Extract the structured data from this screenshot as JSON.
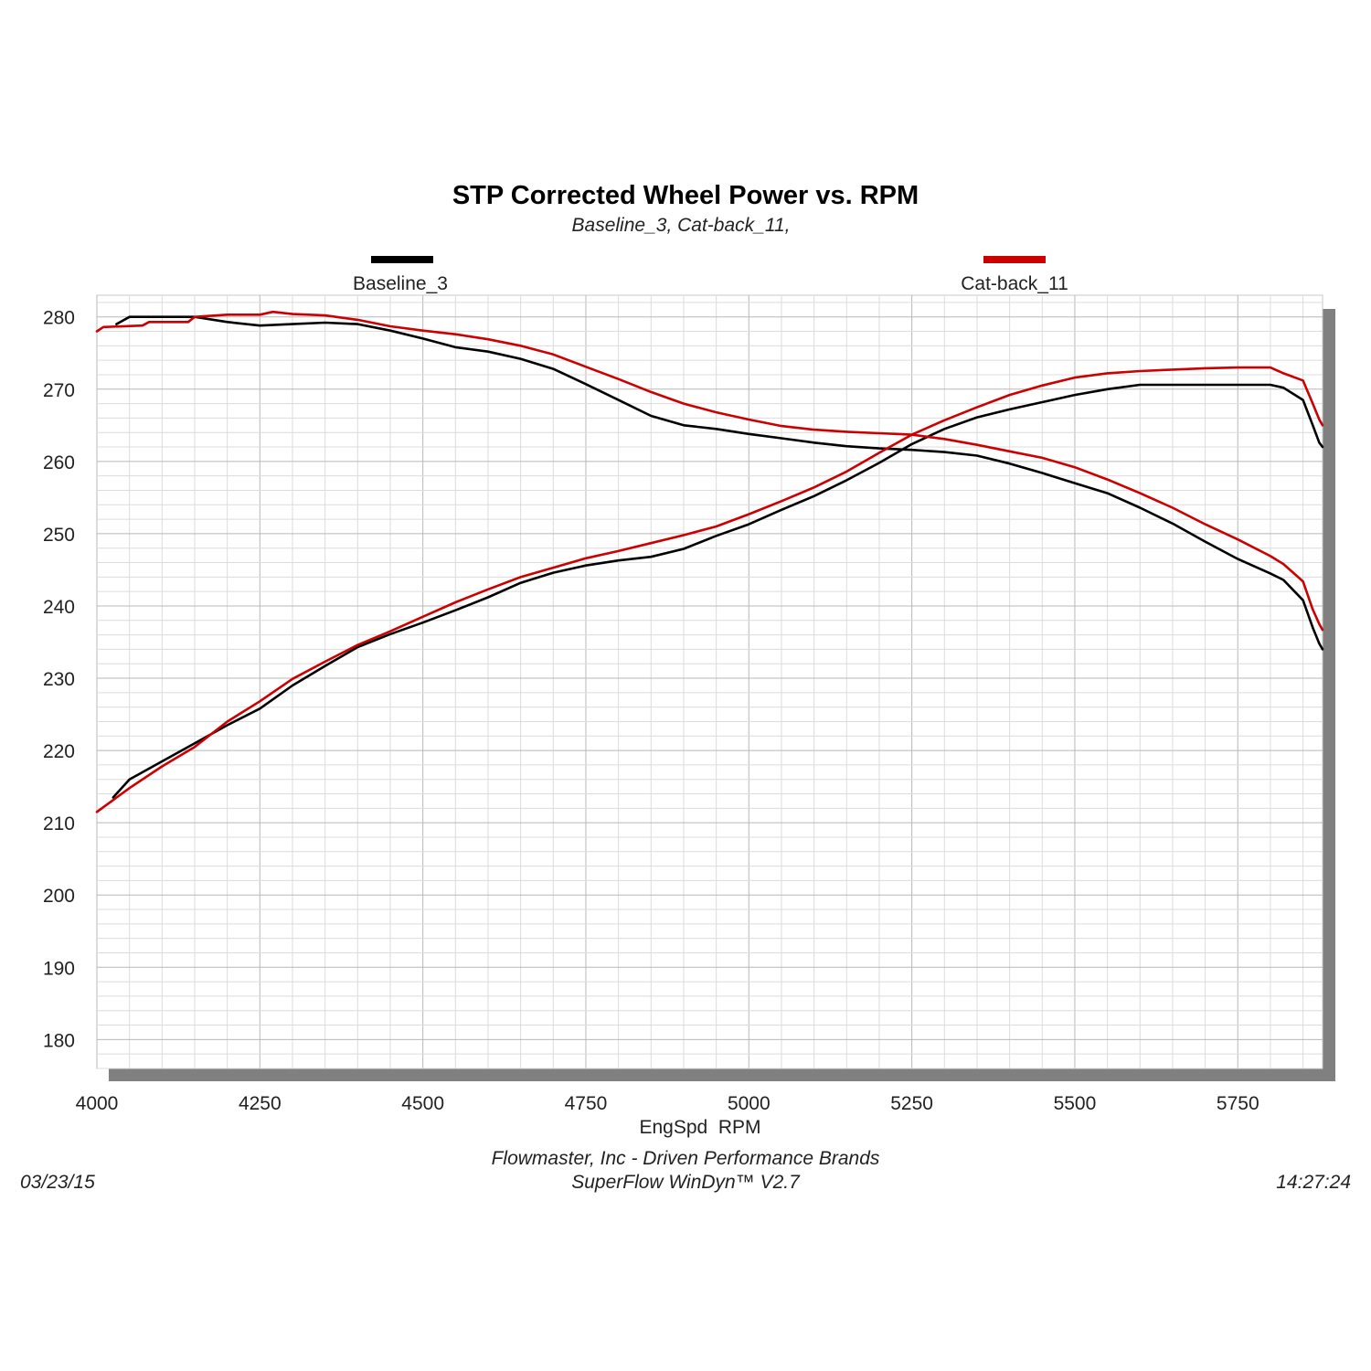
{
  "chart_data": {
    "type": "line",
    "title": "STP Corrected Wheel Power vs. RPM",
    "subtitle": "Baseline_3, Cat-back_11,",
    "xlabel": "EngSpd  RPM",
    "ylabel": "",
    "xlim": [
      4000,
      5880
    ],
    "ylim": [
      176,
      283
    ],
    "x_ticks": [
      4000,
      4250,
      4500,
      4750,
      5000,
      5250,
      5500,
      5750
    ],
    "y_ticks": [
      180,
      190,
      200,
      210,
      220,
      230,
      240,
      250,
      260,
      270,
      280
    ],
    "grid": true,
    "legend": [
      {
        "name": "Baseline_3",
        "color": "#000000"
      },
      {
        "name": "Cat-back_11",
        "color": "#cc0000"
      }
    ],
    "series": [
      {
        "name": "Baseline_3",
        "curve": "torque",
        "color": "#000000",
        "points": [
          [
            4030,
            279
          ],
          [
            4050,
            280
          ],
          [
            4100,
            280
          ],
          [
            4150,
            280
          ],
          [
            4200,
            279.3
          ],
          [
            4250,
            278.8
          ],
          [
            4300,
            279
          ],
          [
            4350,
            279.2
          ],
          [
            4400,
            279
          ],
          [
            4450,
            278.1
          ],
          [
            4500,
            277
          ],
          [
            4550,
            275.8
          ],
          [
            4600,
            275.2
          ],
          [
            4650,
            274.2
          ],
          [
            4700,
            272.8
          ],
          [
            4750,
            270.7
          ],
          [
            4800,
            268.5
          ],
          [
            4850,
            266.3
          ],
          [
            4900,
            265
          ],
          [
            4950,
            264.5
          ],
          [
            5000,
            263.8
          ],
          [
            5050,
            263.2
          ],
          [
            5100,
            262.6
          ],
          [
            5150,
            262.1
          ],
          [
            5200,
            261.8
          ],
          [
            5250,
            261.6
          ],
          [
            5300,
            261.3
          ],
          [
            5350,
            260.8
          ],
          [
            5400,
            259.7
          ],
          [
            5450,
            258.4
          ],
          [
            5500,
            257
          ],
          [
            5550,
            255.6
          ],
          [
            5600,
            253.6
          ],
          [
            5650,
            251.4
          ],
          [
            5700,
            248.9
          ],
          [
            5750,
            246.5
          ],
          [
            5800,
            244.5
          ],
          [
            5820,
            243.6
          ],
          [
            5850,
            240.8
          ],
          [
            5865,
            237
          ],
          [
            5875,
            234.8
          ],
          [
            5880,
            234
          ]
        ]
      },
      {
        "name": "Baseline_3",
        "curve": "power",
        "color": "#000000",
        "points": [
          [
            4025,
            213.5
          ],
          [
            4050,
            216
          ],
          [
            4100,
            218.5
          ],
          [
            4150,
            221
          ],
          [
            4200,
            223.5
          ],
          [
            4250,
            225.8
          ],
          [
            4300,
            229
          ],
          [
            4350,
            231.7
          ],
          [
            4400,
            234.3
          ],
          [
            4450,
            236.1
          ],
          [
            4500,
            237.7
          ],
          [
            4550,
            239.4
          ],
          [
            4600,
            241.2
          ],
          [
            4650,
            243.2
          ],
          [
            4700,
            244.6
          ],
          [
            4750,
            245.6
          ],
          [
            4800,
            246.3
          ],
          [
            4850,
            246.8
          ],
          [
            4900,
            247.9
          ],
          [
            4950,
            249.7
          ],
          [
            5000,
            251.3
          ],
          [
            5050,
            253.3
          ],
          [
            5100,
            255.2
          ],
          [
            5150,
            257.4
          ],
          [
            5200,
            259.8
          ],
          [
            5250,
            262.4
          ],
          [
            5300,
            264.5
          ],
          [
            5350,
            266.1
          ],
          [
            5400,
            267.2
          ],
          [
            5450,
            268.2
          ],
          [
            5500,
            269.2
          ],
          [
            5550,
            270
          ],
          [
            5600,
            270.6
          ],
          [
            5650,
            270.6
          ],
          [
            5700,
            270.6
          ],
          [
            5750,
            270.6
          ],
          [
            5800,
            270.6
          ],
          [
            5820,
            270.2
          ],
          [
            5850,
            268.5
          ],
          [
            5865,
            265
          ],
          [
            5875,
            262.6
          ],
          [
            5880,
            262
          ]
        ]
      },
      {
        "name": "Cat-back_11",
        "curve": "torque",
        "color": "#cc0000",
        "points": [
          [
            4000,
            278
          ],
          [
            4010,
            278.6
          ],
          [
            4070,
            278.8
          ],
          [
            4080,
            279.3
          ],
          [
            4140,
            279.3
          ],
          [
            4150,
            280
          ],
          [
            4200,
            280.3
          ],
          [
            4250,
            280.3
          ],
          [
            4270,
            280.7
          ],
          [
            4300,
            280.4
          ],
          [
            4350,
            280.2
          ],
          [
            4400,
            279.6
          ],
          [
            4450,
            278.7
          ],
          [
            4500,
            278.1
          ],
          [
            4550,
            277.6
          ],
          [
            4600,
            276.9
          ],
          [
            4650,
            276
          ],
          [
            4700,
            274.8
          ],
          [
            4750,
            273.1
          ],
          [
            4800,
            271.4
          ],
          [
            4850,
            269.6
          ],
          [
            4900,
            268
          ],
          [
            4950,
            266.8
          ],
          [
            5000,
            265.8
          ],
          [
            5050,
            264.9
          ],
          [
            5100,
            264.4
          ],
          [
            5150,
            264.1
          ],
          [
            5200,
            263.9
          ],
          [
            5250,
            263.7
          ],
          [
            5300,
            263.1
          ],
          [
            5350,
            262.3
          ],
          [
            5400,
            261.4
          ],
          [
            5450,
            260.5
          ],
          [
            5500,
            259.2
          ],
          [
            5550,
            257.5
          ],
          [
            5600,
            255.6
          ],
          [
            5650,
            253.6
          ],
          [
            5700,
            251.3
          ],
          [
            5750,
            249.2
          ],
          [
            5800,
            246.9
          ],
          [
            5820,
            245.8
          ],
          [
            5850,
            243.4
          ],
          [
            5865,
            239.5
          ],
          [
            5875,
            237.5
          ],
          [
            5880,
            236.7
          ]
        ]
      },
      {
        "name": "Cat-back_11",
        "curve": "power",
        "color": "#cc0000",
        "points": [
          [
            4000,
            211.5
          ],
          [
            4050,
            214.8
          ],
          [
            4100,
            217.8
          ],
          [
            4150,
            220.5
          ],
          [
            4200,
            224
          ],
          [
            4250,
            226.8
          ],
          [
            4300,
            229.9
          ],
          [
            4350,
            232.3
          ],
          [
            4400,
            234.6
          ],
          [
            4450,
            236.5
          ],
          [
            4500,
            238.5
          ],
          [
            4550,
            240.5
          ],
          [
            4600,
            242.3
          ],
          [
            4650,
            244
          ],
          [
            4700,
            245.3
          ],
          [
            4750,
            246.6
          ],
          [
            4800,
            247.6
          ],
          [
            4850,
            248.7
          ],
          [
            4900,
            249.8
          ],
          [
            4950,
            251
          ],
          [
            5000,
            252.7
          ],
          [
            5050,
            254.5
          ],
          [
            5100,
            256.4
          ],
          [
            5150,
            258.6
          ],
          [
            5200,
            261.2
          ],
          [
            5250,
            263.7
          ],
          [
            5300,
            265.7
          ],
          [
            5350,
            267.5
          ],
          [
            5400,
            269.2
          ],
          [
            5450,
            270.5
          ],
          [
            5500,
            271.6
          ],
          [
            5550,
            272.2
          ],
          [
            5600,
            272.5
          ],
          [
            5650,
            272.7
          ],
          [
            5700,
            272.9
          ],
          [
            5750,
            273
          ],
          [
            5800,
            273
          ],
          [
            5820,
            272.2
          ],
          [
            5850,
            271.2
          ],
          [
            5865,
            268
          ],
          [
            5875,
            265.8
          ],
          [
            5880,
            265
          ]
        ]
      }
    ]
  },
  "footer": {
    "company": "Flowmaster, Inc - Driven Performance Brands",
    "software": "SuperFlow WinDyn™ V2.7",
    "date": "03/23/15",
    "time": "14:27:24"
  }
}
